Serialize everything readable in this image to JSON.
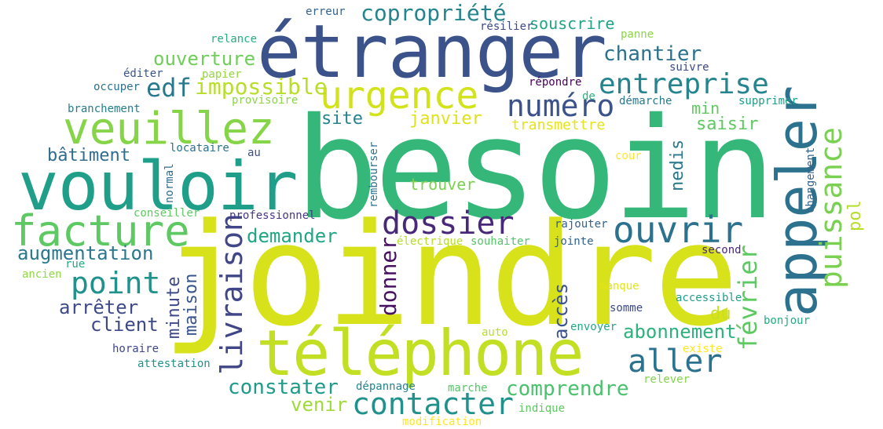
{
  "colors": {
    "background": "#ffffff",
    "palette": [
      "#3b528b",
      "#21918c",
      "#5ec962",
      "#fde725",
      "#440154",
      "#35b779",
      "#d0e11c",
      "#2c728e",
      "#31688e",
      "#8fd744"
    ]
  },
  "words": [
    {
      "text": "besoin",
      "color": "#35b779"
    },
    {
      "text": "joindre",
      "color": "#d7e21a"
    },
    {
      "text": "étranger",
      "color": "#3b528b"
    },
    {
      "text": "vouloir",
      "color": "#1f9e89"
    },
    {
      "text": "téléphone",
      "color": "#c2df23"
    },
    {
      "text": "appeler",
      "color": "#2c728e"
    },
    {
      "text": "veuillez",
      "color": "#86d549"
    },
    {
      "text": "urgence",
      "color": "#d2e21b"
    },
    {
      "text": "facture",
      "color": "#5ec962"
    },
    {
      "text": "ouvrir",
      "color": "#2c728e"
    },
    {
      "text": "contacter",
      "color": "#21918c"
    },
    {
      "text": "livraison",
      "color": "#404688"
    },
    {
      "text": "puissance",
      "color": "#7ad151"
    },
    {
      "text": "aller",
      "color": "#2c728e"
    },
    {
      "text": "point",
      "color": "#21918c"
    },
    {
      "text": "dossier",
      "color": "#482878"
    },
    {
      "text": "numéro",
      "color": "#3b528b"
    },
    {
      "text": "entreprise",
      "color": "#25858e"
    },
    {
      "text": "copropriété",
      "color": "#25848e"
    },
    {
      "text": "edf",
      "color": "#2a788e"
    },
    {
      "text": "impossible",
      "color": "#b8de29"
    },
    {
      "text": "février",
      "color": "#5ec962"
    },
    {
      "text": "comprendre",
      "color": "#4ac16d"
    },
    {
      "text": "constater",
      "color": "#1e9b8a"
    },
    {
      "text": "donner",
      "color": "#471063"
    },
    {
      "text": "augmentation",
      "color": "#2a788e"
    },
    {
      "text": "demander",
      "color": "#21a685"
    },
    {
      "text": "chantier",
      "color": "#2c728e"
    },
    {
      "text": "ouverture",
      "color": "#6ece58"
    },
    {
      "text": "arrêter",
      "color": "#3e4a89"
    },
    {
      "text": "client",
      "color": "#3e4989"
    },
    {
      "text": "abonnement",
      "color": "#2db27d"
    },
    {
      "text": "venir",
      "color": "#9fda3a"
    },
    {
      "text": "bâtiment",
      "color": "#2f6c8e"
    },
    {
      "text": "janvier",
      "color": "#dde318"
    },
    {
      "text": "site",
      "color": "#25838e"
    },
    {
      "text": "trouver",
      "color": "#7ad151"
    },
    {
      "text": "minute",
      "color": "#3e4a89"
    },
    {
      "text": "maison",
      "color": "#39568c"
    },
    {
      "text": "accès",
      "color": "#3b528b"
    },
    {
      "text": "nedis",
      "color": "#2a788e"
    },
    {
      "text": "saisir",
      "color": "#5ec962"
    },
    {
      "text": "souscrire",
      "color": "#20a386"
    },
    {
      "text": "min",
      "color": "#60ca60"
    },
    {
      "text": "du",
      "color": "#c8e020"
    },
    {
      "text": "transmettre",
      "color": "#e5e419"
    },
    {
      "text": "pol",
      "color": "#b5de2b"
    },
    {
      "text": "erreur",
      "color": "#33638d"
    },
    {
      "text": "résilier",
      "color": "#3e4989"
    },
    {
      "text": "panne",
      "color": "#8bd646"
    },
    {
      "text": "relance",
      "color": "#27ad81"
    },
    {
      "text": "suivre",
      "color": "#3e4989"
    },
    {
      "text": "papier",
      "color": "#95d840"
    },
    {
      "text": "éditer",
      "color": "#3a548c"
    },
    {
      "text": "occuper",
      "color": "#2c728e"
    },
    {
      "text": "provisoire",
      "color": "#8bd646"
    },
    {
      "text": "répondre",
      "color": "#440154"
    },
    {
      "text": "de",
      "color": "#2db27d"
    },
    {
      "text": "démarche",
      "color": "#2a788e"
    },
    {
      "text": "supprimer",
      "color": "#1f9e89"
    },
    {
      "text": "branchement",
      "color": "#287d8e"
    },
    {
      "text": "locataire",
      "color": "#2c728e"
    },
    {
      "text": "au",
      "color": "#3b528b"
    },
    {
      "text": "cour",
      "color": "#fde725"
    },
    {
      "text": "changement",
      "color": "#33638d"
    },
    {
      "text": "normal",
      "color": "#2f6c8e"
    },
    {
      "text": "rembourser",
      "color": "#2c728e"
    },
    {
      "text": "conseiller",
      "color": "#5ec962"
    },
    {
      "text": "professionnel",
      "color": "#443983"
    },
    {
      "text": "rue",
      "color": "#22a884"
    },
    {
      "text": "ancien",
      "color": "#8fd744"
    },
    {
      "text": "électrique",
      "color": "#b5de2b"
    },
    {
      "text": "souhaiter",
      "color": "#54c568"
    },
    {
      "text": "jointe",
      "color": "#33638d"
    },
    {
      "text": "rajouter",
      "color": "#35608d"
    },
    {
      "text": "second",
      "color": "#482878"
    },
    {
      "text": "manque",
      "color": "#e2e418"
    },
    {
      "text": "accessible",
      "color": "#1f9e89"
    },
    {
      "text": "somme",
      "color": "#3e4989"
    },
    {
      "text": "bonjour",
      "color": "#25ab82"
    },
    {
      "text": "auto",
      "color": "#b8de29"
    },
    {
      "text": "envoyer",
      "color": "#22a884"
    },
    {
      "text": "existe",
      "color": "#fde725"
    },
    {
      "text": "horaire",
      "color": "#3e4989"
    },
    {
      "text": "attestation",
      "color": "#21918c"
    },
    {
      "text": "dépannage",
      "color": "#25848e"
    },
    {
      "text": "marche",
      "color": "#56c667"
    },
    {
      "text": "relever",
      "color": "#84d44b"
    },
    {
      "text": "indique",
      "color": "#5ec962"
    },
    {
      "text": "modification",
      "color": "#fde725"
    }
  ]
}
